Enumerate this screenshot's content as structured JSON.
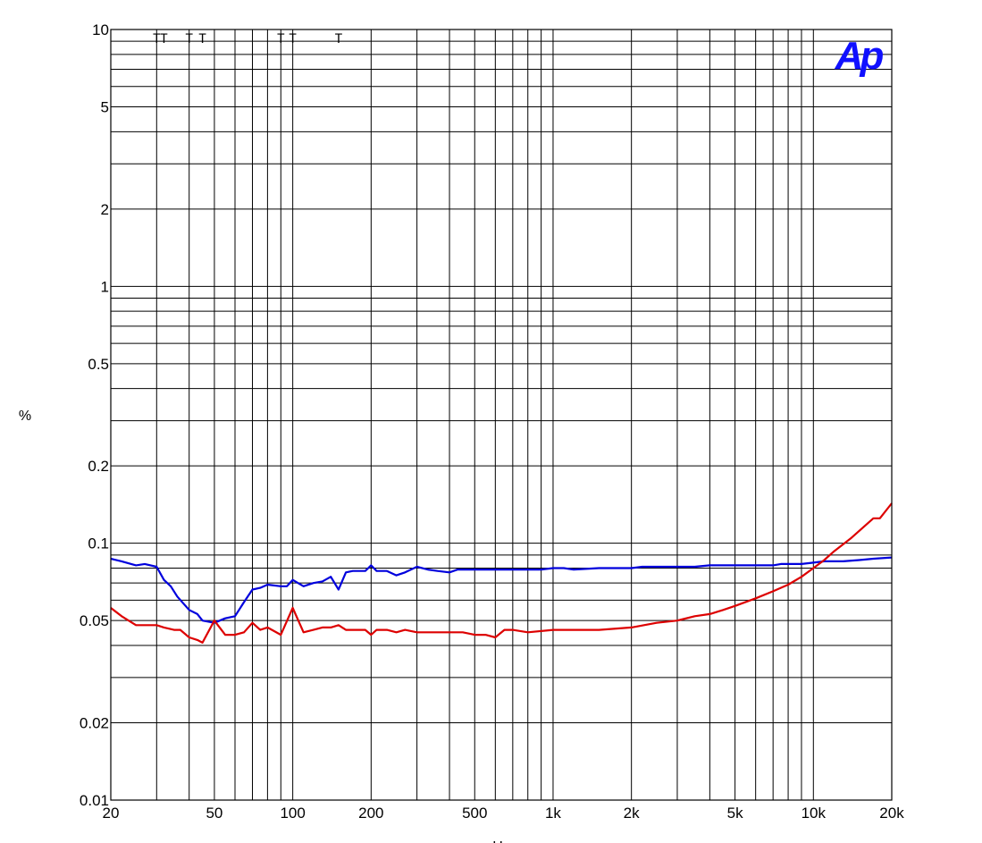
{
  "chart_data": {
    "type": "line",
    "xscale": "log",
    "yscale": "log",
    "xlim": [
      20,
      20000
    ],
    "ylim": [
      0.01,
      10
    ],
    "xlabel": "Hz",
    "ylabel": "%",
    "grid": true,
    "x_ticks": [
      {
        "value": 20,
        "label": "20"
      },
      {
        "value": 50,
        "label": "50"
      },
      {
        "value": 100,
        "label": "100"
      },
      {
        "value": 200,
        "label": "200"
      },
      {
        "value": 500,
        "label": "500"
      },
      {
        "value": 1000,
        "label": "1k"
      },
      {
        "value": 2000,
        "label": "2k"
      },
      {
        "value": 5000,
        "label": "5k"
      },
      {
        "value": 10000,
        "label": "10k"
      },
      {
        "value": 20000,
        "label": "20k"
      }
    ],
    "y_ticks": [
      {
        "value": 10,
        "label": "10"
      },
      {
        "value": 5,
        "label": "5"
      },
      {
        "value": 2,
        "label": "2"
      },
      {
        "value": 1,
        "label": "1"
      },
      {
        "value": 0.5,
        "label": "0.5"
      },
      {
        "value": 0.2,
        "label": "0.2"
      },
      {
        "value": 0.1,
        "label": "0.1"
      },
      {
        "value": 0.05,
        "label": "0.05"
      },
      {
        "value": 0.02,
        "label": "0.02"
      },
      {
        "value": 0.01,
        "label": "0.01"
      }
    ],
    "markers": [
      {
        "x": 30,
        "label": "T"
      },
      {
        "x": 32,
        "label": "T"
      },
      {
        "x": 40,
        "label": "T"
      },
      {
        "x": 45,
        "label": "T"
      },
      {
        "x": 90,
        "label": "T"
      },
      {
        "x": 100,
        "label": "T"
      },
      {
        "x": 150,
        "label": "T"
      }
    ],
    "series": [
      {
        "color": "#0000dd",
        "x": [
          20,
          22,
          25,
          27,
          30,
          32,
          34,
          36,
          40,
          43,
          45,
          50,
          55,
          60,
          65,
          70,
          75,
          80,
          90,
          95,
          100,
          110,
          120,
          130,
          140,
          150,
          160,
          170,
          180,
          190,
          200,
          210,
          230,
          250,
          270,
          300,
          330,
          360,
          400,
          430,
          470,
          500,
          600,
          700,
          800,
          900,
          1000,
          1100,
          1200,
          1500,
          2000,
          2200,
          2500,
          3000,
          3500,
          4000,
          4500,
          5000,
          5500,
          6000,
          6500,
          7000,
          7500,
          8000,
          9000,
          10000,
          11000,
          12000,
          13000,
          15000,
          17000,
          20000
        ],
        "y": [
          0.087,
          0.085,
          0.082,
          0.083,
          0.081,
          0.072,
          0.068,
          0.062,
          0.055,
          0.053,
          0.05,
          0.049,
          0.051,
          0.052,
          0.059,
          0.066,
          0.067,
          0.069,
          0.068,
          0.068,
          0.072,
          0.068,
          0.07,
          0.071,
          0.074,
          0.066,
          0.077,
          0.078,
          0.078,
          0.078,
          0.082,
          0.078,
          0.078,
          0.075,
          0.077,
          0.081,
          0.079,
          0.078,
          0.077,
          0.079,
          0.079,
          0.079,
          0.079,
          0.079,
          0.079,
          0.079,
          0.08,
          0.08,
          0.079,
          0.08,
          0.08,
          0.081,
          0.081,
          0.081,
          0.081,
          0.082,
          0.082,
          0.082,
          0.082,
          0.082,
          0.082,
          0.082,
          0.083,
          0.083,
          0.083,
          0.084,
          0.085,
          0.085,
          0.085,
          0.086,
          0.087,
          0.088
        ]
      },
      {
        "color": "#dd0000",
        "x": [
          20,
          22,
          25,
          27,
          30,
          32,
          35,
          37,
          40,
          43,
          45,
          50,
          55,
          60,
          65,
          70,
          75,
          80,
          90,
          100,
          110,
          120,
          130,
          140,
          150,
          160,
          170,
          180,
          190,
          200,
          210,
          230,
          250,
          270,
          300,
          330,
          360,
          400,
          450,
          500,
          550,
          600,
          650,
          700,
          800,
          1000,
          1200,
          1500,
          2000,
          2500,
          3000,
          3500,
          4000,
          4500,
          5000,
          6000,
          7000,
          8000,
          9000,
          10000,
          11000,
          12000,
          14000,
          17000,
          18000,
          20000
        ],
        "y": [
          0.056,
          0.052,
          0.048,
          0.048,
          0.048,
          0.047,
          0.046,
          0.046,
          0.043,
          0.042,
          0.041,
          0.05,
          0.044,
          0.044,
          0.045,
          0.049,
          0.046,
          0.047,
          0.044,
          0.056,
          0.045,
          0.046,
          0.047,
          0.047,
          0.048,
          0.046,
          0.046,
          0.046,
          0.046,
          0.044,
          0.046,
          0.046,
          0.045,
          0.046,
          0.045,
          0.045,
          0.045,
          0.045,
          0.045,
          0.044,
          0.044,
          0.043,
          0.046,
          0.046,
          0.045,
          0.046,
          0.046,
          0.046,
          0.047,
          0.049,
          0.05,
          0.052,
          0.053,
          0.055,
          0.057,
          0.061,
          0.065,
          0.069,
          0.074,
          0.08,
          0.086,
          0.093,
          0.105,
          0.125,
          0.125,
          0.143
        ]
      }
    ]
  },
  "logo": {
    "text": "Ap",
    "color": "#1010ff"
  }
}
